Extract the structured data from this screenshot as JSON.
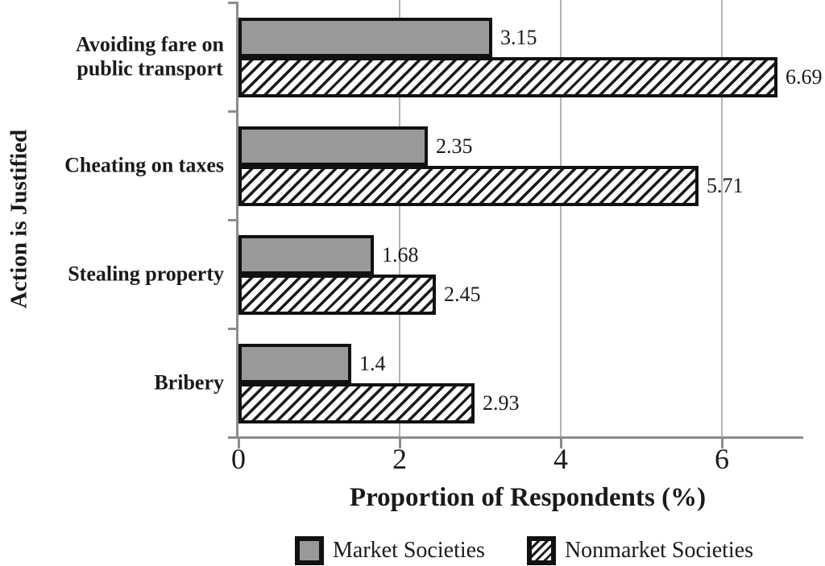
{
  "chart_data": {
    "type": "bar",
    "orientation": "horizontal",
    "title": "",
    "xlabel": "Proportion of Respondents (%)",
    "ylabel": "Action is Justified",
    "categories": [
      "Avoiding fare on\npublic transport",
      "Cheating on taxes",
      "Stealing property",
      "Bribery"
    ],
    "series": [
      {
        "name": "Market Societies",
        "pattern": "solid",
        "fill": "#999999",
        "values": [
          3.15,
          2.35,
          1.68,
          1.4
        ]
      },
      {
        "name": "Nonmarket Societies",
        "pattern": "hatched",
        "fill": "#ffffff",
        "values": [
          6.69,
          5.71,
          2.45,
          2.93
        ]
      }
    ],
    "xlim": [
      0,
      7
    ],
    "xticks": [
      0,
      2,
      4,
      6
    ],
    "grid": "vertical",
    "value_labels": true,
    "legend_position": "bottom"
  },
  "colors": {
    "bar_border": "#111111",
    "hatch_stroke": "#1a1a1a",
    "gridline": "#b3b3b3",
    "axis": "#8c8c8c",
    "text": "#1a1a1a",
    "background": "#ffffff"
  }
}
